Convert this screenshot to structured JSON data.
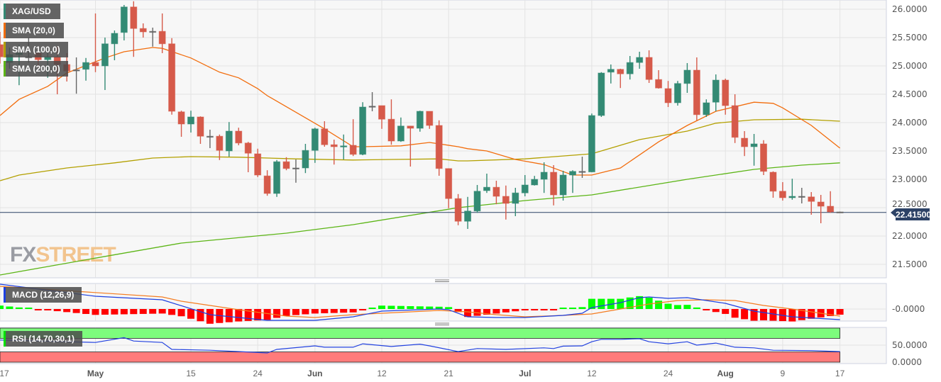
{
  "chart_data": {
    "type": "candlestick",
    "symbol": "XAG/USD",
    "price_axis": {
      "ticks": [
        "26.0000",
        "25.5000",
        "25.0000",
        "24.5000",
        "24.0000",
        "23.5000",
        "23.0000",
        "22.5000",
        "22.0000",
        "21.5000"
      ],
      "range": [
        21.3,
        26.15
      ]
    },
    "x_ticks": [
      {
        "date": "2023-04-17",
        "label": "17",
        "bold": false
      },
      {
        "date": "2023-05-01",
        "label": "May",
        "bold": true
      },
      {
        "date": "2023-05-15",
        "label": "15",
        "bold": false
      },
      {
        "date": "2023-05-24",
        "label": "24",
        "bold": false
      },
      {
        "date": "2023-06-01",
        "label": "Jun",
        "bold": true
      },
      {
        "date": "2023-06-12",
        "label": "12",
        "bold": false
      },
      {
        "date": "2023-06-21",
        "label": "21",
        "bold": false
      },
      {
        "date": "2023-07-03",
        "label": "Jul",
        "bold": true
      },
      {
        "date": "2023-07-12",
        "label": "12",
        "bold": false
      },
      {
        "date": "2023-07-24",
        "label": "24",
        "bold": false
      },
      {
        "date": "2023-08-01",
        "label": "Aug",
        "bold": true
      },
      {
        "date": "2023-08-09",
        "label": "9",
        "bold": false
      },
      {
        "date": "2023-08-17",
        "label": "17",
        "bold": false
      }
    ],
    "last_price": 22.415,
    "last_price_label": "22.41500",
    "grid": true,
    "colors": {
      "up": "#338a74",
      "down": "#d65a4a",
      "sma20": "#f26d0d",
      "sma100": "#b3a000",
      "sma200": "#5cb516",
      "macd": "#1c3fe0",
      "signal": "#f47c20",
      "hist_up": "#00ff00",
      "hist_down": "#ff0000",
      "rsi": "#2443e0",
      "rsi_over": "#7dfc7d",
      "rsi_under": "#ff7b7b",
      "last_line": "#2c4266"
    },
    "legend": [
      {
        "label": "XAG/USD",
        "color": "#338a74"
      },
      {
        "label": "SMA (20,0)",
        "color": "#f26d0d"
      },
      {
        "label": "SMA (100,0)",
        "color": "#b3a000"
      },
      {
        "label": "SMA (200,0)",
        "color": "#5cb516"
      }
    ],
    "candles": [
      [
        "2023-04-17",
        25.375,
        25.6,
        25.04,
        25.16
      ],
      [
        "2023-04-18",
        25.06,
        25.325,
        24.95,
        25.2
      ],
      [
        "2023-04-19",
        25.2,
        25.375,
        24.66,
        25.225
      ],
      [
        "2023-04-20",
        25.16,
        25.5,
        25.06,
        25.16
      ],
      [
        "2023-04-21",
        25.225,
        25.35,
        24.975,
        25.11
      ],
      [
        "2023-04-24",
        25.11,
        25.225,
        24.79,
        25.16
      ],
      [
        "2023-04-25",
        25.16,
        25.35,
        24.5,
        25.025
      ],
      [
        "2023-04-26",
        25.025,
        25.225,
        24.725,
        24.91
      ],
      [
        "2023-04-27",
        24.92,
        25.15,
        24.51,
        24.93
      ],
      [
        "2023-04-28",
        24.94,
        25.14,
        24.74,
        25.06
      ],
      [
        "2023-05-01",
        25.06,
        25.925,
        24.89,
        25.0
      ],
      [
        "2023-05-02",
        25.0,
        25.5,
        24.575,
        25.39
      ],
      [
        "2023-05-03",
        25.39,
        25.625,
        25.1,
        25.575
      ],
      [
        "2023-05-04",
        25.59,
        26.075,
        25.45,
        26.04
      ],
      [
        "2023-05-05",
        26.04,
        26.14,
        25.16,
        25.66
      ],
      [
        "2023-05-08",
        25.66,
        25.75,
        25.5,
        25.6
      ],
      [
        "2023-05-09",
        25.6,
        25.675,
        25.34,
        25.61
      ],
      [
        "2023-05-10",
        25.61,
        25.925,
        25.225,
        25.39
      ],
      [
        "2023-05-11",
        25.39,
        25.49,
        24.14,
        24.2
      ],
      [
        "2023-05-12",
        24.19,
        24.21,
        23.75,
        23.975
      ],
      [
        "2023-05-15",
        23.975,
        24.21,
        23.825,
        24.1
      ],
      [
        "2023-05-16",
        24.1,
        24.11,
        23.625,
        23.76
      ],
      [
        "2023-05-17",
        23.76,
        23.875,
        23.55,
        23.76
      ],
      [
        "2023-05-18",
        23.76,
        23.79,
        23.34,
        23.51
      ],
      [
        "2023-05-19",
        23.5,
        24.01,
        23.4,
        23.85
      ],
      [
        "2023-05-22",
        23.85,
        23.91,
        23.6,
        23.64
      ],
      [
        "2023-05-23",
        23.64,
        23.66,
        23.125,
        23.46
      ],
      [
        "2023-05-24",
        23.45,
        23.54,
        23.04,
        23.075
      ],
      [
        "2023-05-25",
        23.06,
        23.16,
        22.71,
        22.75
      ],
      [
        "2023-05-26",
        22.75,
        23.34,
        22.69,
        23.31
      ],
      [
        "2023-05-29",
        23.31,
        23.39,
        23.16,
        23.19
      ],
      [
        "2023-05-30",
        23.19,
        23.35,
        22.94,
        23.2
      ],
      [
        "2023-05-31",
        23.2,
        23.625,
        23.11,
        23.51
      ],
      [
        "2023-06-01",
        23.51,
        23.91,
        23.29,
        23.89
      ],
      [
        "2023-06-02",
        23.89,
        24.025,
        23.575,
        23.61
      ],
      [
        "2023-06-05",
        23.61,
        23.7,
        23.26,
        23.575
      ],
      [
        "2023-06-06",
        23.57,
        23.79,
        23.35,
        23.59
      ],
      [
        "2023-06-07",
        23.6,
        24.06,
        23.41,
        23.44
      ],
      [
        "2023-06-08",
        23.44,
        24.36,
        23.425,
        24.275
      ],
      [
        "2023-06-09",
        24.28,
        24.5375,
        24.2,
        24.29
      ],
      [
        "2023-06-12",
        24.3,
        24.3,
        23.89,
        24.06
      ],
      [
        "2023-06-13",
        24.06,
        24.41,
        23.61,
        23.675
      ],
      [
        "2023-06-14",
        23.675,
        24.09,
        23.66,
        23.94
      ],
      [
        "2023-06-15",
        23.94,
        23.94,
        23.225,
        23.9
      ],
      [
        "2023-06-16",
        23.9,
        24.21,
        23.84,
        24.2
      ],
      [
        "2023-06-19",
        24.2,
        24.2,
        23.89,
        23.95
      ],
      [
        "2023-06-20",
        23.95,
        24.04,
        23.0625,
        23.19
      ],
      [
        "2023-06-21",
        23.19,
        23.19,
        22.49,
        22.66
      ],
      [
        "2023-06-22",
        22.66,
        22.74,
        22.19,
        22.26
      ],
      [
        "2023-06-23",
        22.26,
        22.69,
        22.125,
        22.44
      ],
      [
        "2023-06-26",
        22.44,
        22.9,
        22.41,
        22.79
      ],
      [
        "2023-06-27",
        22.8,
        23.1,
        22.76,
        22.86
      ],
      [
        "2023-06-28",
        22.86,
        22.975,
        22.56,
        22.7
      ],
      [
        "2023-06-29",
        22.7,
        22.89,
        22.29,
        22.575
      ],
      [
        "2023-06-30",
        22.575,
        22.85,
        22.35,
        22.76
      ],
      [
        "2023-07-03",
        22.76,
        23.075,
        22.7,
        22.9
      ],
      [
        "2023-07-04",
        22.9,
        23.06,
        22.89,
        23.0
      ],
      [
        "2023-07-05",
        23.0,
        23.3,
        22.76,
        23.125
      ],
      [
        "2023-07-06",
        23.125,
        23.25,
        22.54,
        22.725
      ],
      [
        "2023-07-07",
        22.725,
        23.15,
        22.625,
        23.075
      ],
      [
        "2023-07-10",
        23.075,
        23.16,
        22.76,
        23.14
      ],
      [
        "2023-07-11",
        23.14,
        23.4,
        23.025,
        23.13
      ],
      [
        "2023-07-12",
        23.13,
        24.16,
        23.125,
        24.125
      ],
      [
        "2023-07-13",
        24.125,
        24.89,
        24.1,
        24.875
      ],
      [
        "2023-07-14",
        24.89,
        25.025,
        24.69,
        24.94
      ],
      [
        "2023-07-17",
        24.94,
        24.95,
        24.61,
        24.86
      ],
      [
        "2023-07-18",
        24.86,
        25.175,
        24.76,
        25.06
      ],
      [
        "2023-07-19",
        25.06,
        25.25,
        24.95,
        25.15
      ],
      [
        "2023-07-20",
        25.15,
        25.275,
        24.7,
        24.76
      ],
      [
        "2023-07-21",
        24.76,
        24.925,
        24.6,
        24.61
      ],
      [
        "2023-07-24",
        24.6,
        24.735,
        24.275,
        24.35
      ],
      [
        "2023-07-25",
        24.35,
        24.735,
        24.3,
        24.69
      ],
      [
        "2023-07-26",
        24.69,
        25.05,
        24.525,
        24.925
      ],
      [
        "2023-07-27",
        24.925,
        25.15,
        24.04,
        24.14
      ],
      [
        "2023-07-28",
        24.14,
        24.41,
        24.1,
        24.35
      ],
      [
        "2023-07-31",
        24.36,
        24.85,
        24.2,
        24.75
      ],
      [
        "2023-08-01",
        24.75,
        24.775,
        24.14,
        24.3
      ],
      [
        "2023-08-02",
        24.3,
        24.5,
        23.64,
        23.74
      ],
      [
        "2023-08-03",
        23.725,
        23.85,
        23.41,
        23.575
      ],
      [
        "2023-08-04",
        23.575,
        23.8,
        23.24,
        23.625
      ],
      [
        "2023-08-07",
        23.625,
        23.69,
        23.075,
        23.14
      ],
      [
        "2023-08-08",
        23.125,
        23.14,
        22.675,
        22.79
      ],
      [
        "2023-08-09",
        22.79,
        22.95,
        22.625,
        22.675
      ],
      [
        "2023-08-10",
        22.675,
        23.01,
        22.64,
        22.7
      ],
      [
        "2023-08-11",
        22.7,
        22.85,
        22.575,
        22.69
      ],
      [
        "2023-08-14",
        22.69,
        22.775,
        22.375,
        22.61
      ],
      [
        "2023-08-15",
        22.6,
        22.725,
        22.225,
        22.525
      ],
      [
        "2023-08-16",
        22.525,
        22.79,
        22.41,
        22.425
      ],
      [
        "2023-08-17",
        22.425,
        22.43,
        22.41,
        22.415
      ]
    ],
    "sma20": [
      [
        "2023-04-17",
        24.125
      ],
      [
        "2023-04-19",
        24.41
      ],
      [
        "2023-04-24",
        24.64
      ],
      [
        "2023-04-26",
        24.875
      ],
      [
        "2023-05-02",
        25.14
      ],
      [
        "2023-05-04",
        25.25
      ],
      [
        "2023-05-09",
        25.325
      ],
      [
        "2023-05-10",
        25.31
      ],
      [
        "2023-05-15",
        25.14
      ],
      [
        "2023-05-18",
        24.89
      ],
      [
        "2023-05-22",
        24.79
      ],
      [
        "2023-05-24",
        24.6
      ],
      [
        "2023-05-25",
        24.475
      ],
      [
        "2023-06-02",
        23.89
      ],
      [
        "2023-06-07",
        23.575
      ],
      [
        "2023-06-08",
        23.575
      ],
      [
        "2023-06-14",
        23.59
      ],
      [
        "2023-06-19",
        23.65
      ],
      [
        "2023-06-22",
        23.575
      ],
      [
        "2023-06-23",
        23.54
      ],
      [
        "2023-06-27",
        23.5
      ],
      [
        "2023-06-30",
        23.35
      ],
      [
        "2023-07-05",
        23.26
      ],
      [
        "2023-07-10",
        23.075
      ],
      [
        "2023-07-12",
        23.075
      ],
      [
        "2023-07-17",
        23.2
      ],
      [
        "2023-07-21",
        23.66
      ],
      [
        "2023-07-26",
        23.95
      ],
      [
        "2023-07-31",
        24.2
      ],
      [
        "2023-08-04",
        24.36
      ],
      [
        "2023-08-08",
        24.34
      ],
      [
        "2023-08-09",
        24.26
      ],
      [
        "2023-08-14",
        23.95
      ],
      [
        "2023-08-17",
        23.55
      ]
    ],
    "sma100": [
      [
        "2023-04-17",
        22.975
      ],
      [
        "2023-04-19",
        23.075
      ],
      [
        "2023-04-26",
        23.2
      ],
      [
        "2023-05-03",
        23.29
      ],
      [
        "2023-05-09",
        23.375
      ],
      [
        "2023-05-15",
        23.4
      ],
      [
        "2023-05-22",
        23.39
      ],
      [
        "2023-05-30",
        23.36
      ],
      [
        "2023-06-07",
        23.34
      ],
      [
        "2023-06-13",
        23.35
      ],
      [
        "2023-06-20",
        23.36
      ],
      [
        "2023-06-22",
        23.325
      ],
      [
        "2023-06-23",
        23.325
      ],
      [
        "2023-07-03",
        23.36
      ],
      [
        "2023-07-12",
        23.45
      ],
      [
        "2023-07-19",
        23.7
      ],
      [
        "2023-07-26",
        23.85
      ],
      [
        "2023-07-31",
        23.99
      ],
      [
        "2023-08-04",
        24.05
      ],
      [
        "2023-08-11",
        24.06
      ],
      [
        "2023-08-17",
        24.025
      ]
    ],
    "sma200": [
      [
        "2023-04-17",
        21.3125
      ],
      [
        "2023-05-01",
        21.61
      ],
      [
        "2023-05-12",
        21.875
      ],
      [
        "2023-05-29",
        22.05
      ],
      [
        "2023-06-07",
        22.2
      ],
      [
        "2023-06-22",
        22.5
      ],
      [
        "2023-07-03",
        22.625
      ],
      [
        "2023-07-12",
        22.725
      ],
      [
        "2023-07-26",
        23.0
      ],
      [
        "2023-08-04",
        23.175
      ],
      [
        "2023-08-11",
        23.25
      ],
      [
        "2023-08-17",
        23.29
      ]
    ]
  },
  "macd": {
    "label": "MACD (12,26,9)",
    "tick": "-0.0000",
    "macd_line": [
      [
        "2023-04-17",
        0.35
      ],
      [
        "2023-05-01",
        0.18
      ],
      [
        "2023-05-10",
        0.13
      ],
      [
        "2023-05-17",
        -0.08
      ],
      [
        "2023-05-25",
        -0.16
      ],
      [
        "2023-06-01",
        -0.16
      ],
      [
        "2023-06-07",
        -0.11
      ],
      [
        "2023-06-12",
        -0.03
      ],
      [
        "2023-06-16",
        -0.01
      ],
      [
        "2023-06-20",
        0.0
      ],
      [
        "2023-06-21",
        -0.01
      ],
      [
        "2023-06-23",
        -0.11
      ],
      [
        "2023-06-28",
        -0.12
      ],
      [
        "2023-07-03",
        -0.12
      ],
      [
        "2023-07-07",
        -0.09
      ],
      [
        "2023-07-11",
        -0.06
      ],
      [
        "2023-07-12",
        0.02
      ],
      [
        "2023-07-17",
        0.09
      ],
      [
        "2023-07-19",
        0.16
      ],
      [
        "2023-07-20",
        0.17
      ],
      [
        "2023-07-24",
        0.15
      ],
      [
        "2023-07-26",
        0.16
      ],
      [
        "2023-07-28",
        0.12
      ],
      [
        "2023-08-01",
        0.08
      ],
      [
        "2023-08-04",
        -0.03
      ],
      [
        "2023-08-10",
        -0.11
      ],
      [
        "2023-08-17",
        -0.15
      ]
    ],
    "signal_line": [
      [
        "2023-04-17",
        0.32
      ],
      [
        "2023-05-10",
        0.17
      ],
      [
        "2023-05-12",
        0.11
      ],
      [
        "2023-05-22",
        -0.01
      ],
      [
        "2023-05-29",
        -0.1
      ],
      [
        "2023-06-01",
        -0.12
      ],
      [
        "2023-06-07",
        -0.08
      ],
      [
        "2023-06-15",
        -0.04
      ],
      [
        "2023-06-20",
        -0.02
      ],
      [
        "2023-06-23",
        -0.04
      ],
      [
        "2023-06-28",
        -0.08
      ],
      [
        "2023-07-03",
        -0.11
      ],
      [
        "2023-07-07",
        -0.09
      ],
      [
        "2023-07-12",
        -0.07
      ],
      [
        "2023-07-17",
        0.0
      ],
      [
        "2023-07-20",
        0.07
      ],
      [
        "2023-07-25",
        0.12
      ],
      [
        "2023-07-28",
        0.13
      ],
      [
        "2023-08-02",
        0.12
      ],
      [
        "2023-08-07",
        0.05
      ],
      [
        "2023-08-10",
        0.0
      ],
      [
        "2023-08-17",
        -0.1
      ]
    ]
  },
  "rsi": {
    "label": "RSI (14,70,30,1)",
    "ticks": [
      "50.0000",
      "0.0000"
    ],
    "overbought": 70,
    "oversold": 30,
    "values": [
      [
        "2023-04-17",
        65
      ],
      [
        "2023-05-01",
        58
      ],
      [
        "2023-05-04",
        72
      ],
      [
        "2023-05-05",
        62
      ],
      [
        "2023-05-10",
        58
      ],
      [
        "2023-05-11",
        37.5
      ],
      [
        "2023-05-17",
        35
      ],
      [
        "2023-05-25",
        27
      ],
      [
        "2023-05-26",
        37.5
      ],
      [
        "2023-06-01",
        48
      ],
      [
        "2023-06-02",
        44
      ],
      [
        "2023-06-07",
        44
      ],
      [
        "2023-06-08",
        54
      ],
      [
        "2023-06-13",
        46
      ],
      [
        "2023-06-16",
        53
      ],
      [
        "2023-06-19",
        48
      ],
      [
        "2023-06-22",
        31
      ],
      [
        "2023-06-26",
        40
      ],
      [
        "2023-06-29",
        37.5
      ],
      [
        "2023-07-05",
        42
      ],
      [
        "2023-07-06",
        40
      ],
      [
        "2023-07-07",
        47
      ],
      [
        "2023-07-11",
        48
      ],
      [
        "2023-07-12",
        60
      ],
      [
        "2023-07-13",
        67
      ],
      [
        "2023-07-17",
        67
      ],
      [
        "2023-07-19",
        69
      ],
      [
        "2023-07-20",
        60
      ],
      [
        "2023-07-24",
        54
      ],
      [
        "2023-07-26",
        60
      ],
      [
        "2023-07-27",
        50
      ],
      [
        "2023-07-31",
        56
      ],
      [
        "2023-08-02",
        44
      ],
      [
        "2023-08-04",
        42
      ],
      [
        "2023-08-08",
        35
      ],
      [
        "2023-08-14",
        34
      ],
      [
        "2023-08-17",
        31
      ]
    ]
  },
  "watermark": {
    "part1": "FX",
    "part2": "STREET"
  }
}
